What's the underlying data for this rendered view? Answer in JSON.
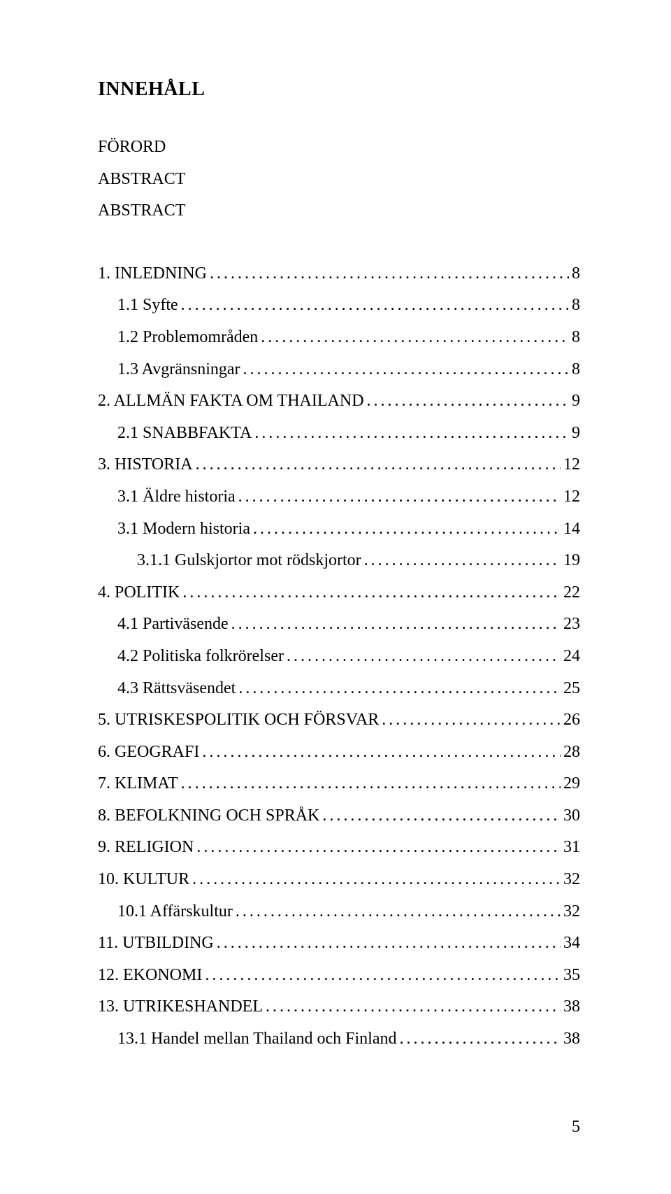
{
  "heading": "INNEHÅLL",
  "frontMatter": [
    "FÖRORD",
    "ABSTRACT",
    "ABSTRACT"
  ],
  "toc": [
    {
      "label": "1. INLEDNING",
      "page": "8",
      "indent": 0
    },
    {
      "label": "1.1 Syfte",
      "page": "8",
      "indent": 1
    },
    {
      "label": "1.2 Problemområden",
      "page": "8",
      "indent": 1
    },
    {
      "label": "1.3 Avgränsningar",
      "page": "8",
      "indent": 1
    },
    {
      "label": "2. ALLMÄN FAKTA OM THAILAND",
      "page": "9",
      "indent": 0
    },
    {
      "label": "2.1 SNABBFAKTA",
      "page": "9",
      "indent": 1
    },
    {
      "label": "3. HISTORIA",
      "page": "12",
      "indent": 0
    },
    {
      "label": "3.1 Äldre historia",
      "page": "12",
      "indent": 1
    },
    {
      "label": "3.1 Modern historia",
      "page": "14",
      "indent": 1
    },
    {
      "label": "3.1.1 Gulskjortor mot rödskjortor",
      "page": "19",
      "indent": 2
    },
    {
      "label": "4. POLITIK",
      "page": "22",
      "indent": 0
    },
    {
      "label": "4.1 Partiväsende",
      "page": "23",
      "indent": 1
    },
    {
      "label": "4.2 Politiska folkrörelser",
      "page": "24",
      "indent": 1
    },
    {
      "label": "4.3 Rättsväsendet",
      "page": "25",
      "indent": 1
    },
    {
      "label": "5. UTRISKESPOLITIK OCH FÖRSVAR",
      "page": "26",
      "indent": 0
    },
    {
      "label": "6. GEOGRAFI",
      "page": "28",
      "indent": 0
    },
    {
      "label": "7. KLIMAT",
      "page": "29",
      "indent": 0
    },
    {
      "label": "8. BEFOLKNING OCH SPRÅK",
      "page": "30",
      "indent": 0
    },
    {
      "label": "9. RELIGION",
      "page": "31",
      "indent": 0
    },
    {
      "label": "10. KULTUR",
      "page": "32",
      "indent": 0
    },
    {
      "label": "10.1 Affärskultur",
      "page": "32",
      "indent": 1
    },
    {
      "label": "11. UTBILDING",
      "page": "34",
      "indent": 0
    },
    {
      "label": "12. EKONOMI",
      "page": "35",
      "indent": 0
    },
    {
      "label": "13. UTRIKESHANDEL",
      "page": "38",
      "indent": 0
    },
    {
      "label": "13.1 Handel mellan Thailand och Finland",
      "page": "38",
      "indent": 1
    }
  ],
  "pageNumber": "5"
}
